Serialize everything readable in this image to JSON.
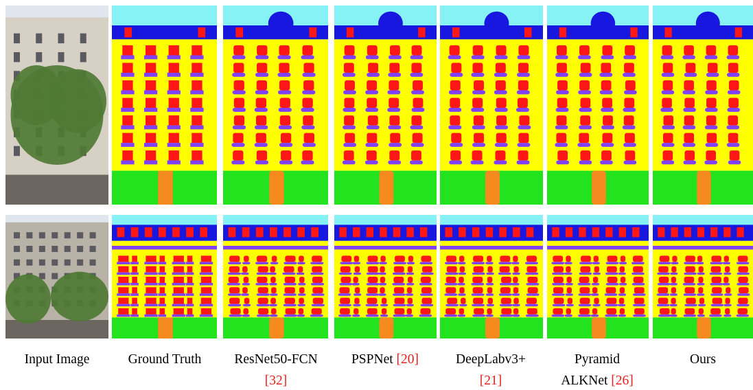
{
  "figure": {
    "captions": [
      {
        "label": "Input Image"
      },
      {
        "label": "Ground Truth"
      },
      {
        "label": "ResNet50-FCN",
        "cite": "[32]"
      },
      {
        "label": "PSPNet",
        "cite": "[20]"
      },
      {
        "label": "DeepLabv3+",
        "cite": "[21]"
      },
      {
        "label": "Pyramid ALKNet",
        "cite": "[26]"
      },
      {
        "label": "Ours"
      }
    ]
  }
}
